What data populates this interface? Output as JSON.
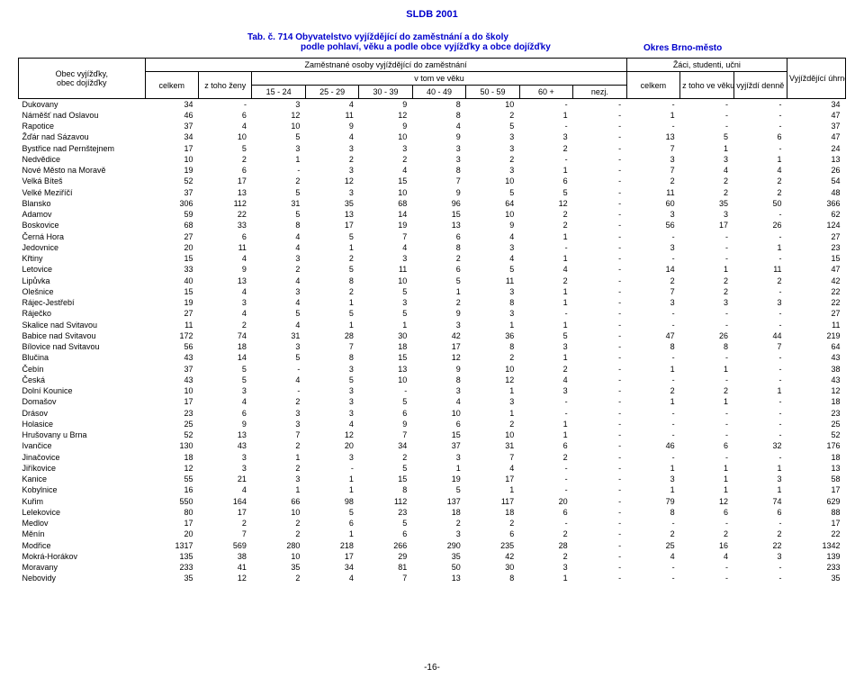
{
  "doc_header": "SLDB 2001",
  "title_prefix": "Tab. č. 714",
  "title_line1": "Obyvatelstvo vyjíždějící do zaměstnání a  do školy",
  "title_line2": "podle pohlaví, věku a podle obce vyjížďky a obce dojížďky",
  "district": "Okres Brno-město",
  "headers": {
    "col_obec_l1": "Obec vyjížďky,",
    "col_obec_l2": "obec dojížďky",
    "col_zamest": "Zaměstnané osoby vyjíždějící do zaměstnání",
    "col_celkem": "celkem",
    "col_ztoho_zeny": "z toho ženy",
    "col_vek": "v tom ve věku",
    "col_15_24": "15 - 24",
    "col_25_29": "25 - 29",
    "col_30_39": "30 - 39",
    "col_40_49": "40 - 49",
    "col_50_59": "50 - 59",
    "col_60p": "60 +",
    "col_nezj": "nezj.",
    "col_zaci": "Žáci, studenti, učni",
    "col_ztoho_vek": "z toho ve věku 6 - 14 let",
    "col_vyjizdi": "vyjíždí denně",
    "col_uhrnem": "Vyjíždějící úhrnem"
  },
  "rows": [
    {
      "n": "Dukovany",
      "v": [
        "34",
        "-",
        "3",
        "4",
        "9",
        "8",
        "10",
        "-",
        "-",
        "-",
        "-",
        "-",
        "34"
      ]
    },
    {
      "n": "Náměšť nad Oslavou",
      "v": [
        "46",
        "6",
        "12",
        "11",
        "12",
        "8",
        "2",
        "1",
        "-",
        "1",
        "-",
        "-",
        "47"
      ]
    },
    {
      "n": "Rapotice",
      "v": [
        "37",
        "4",
        "10",
        "9",
        "9",
        "4",
        "5",
        "-",
        "-",
        "-",
        "-",
        "-",
        "37"
      ]
    },
    {
      "n": "Žďár nad Sázavou",
      "v": [
        "34",
        "10",
        "5",
        "4",
        "10",
        "9",
        "3",
        "3",
        "-",
        "13",
        "5",
        "6",
        "47"
      ]
    },
    {
      "n": "Bystřice nad Pernštejnem",
      "v": [
        "17",
        "5",
        "3",
        "3",
        "3",
        "3",
        "3",
        "2",
        "-",
        "7",
        "1",
        "-",
        "24"
      ]
    },
    {
      "n": "Nedvědice",
      "v": [
        "10",
        "2",
        "1",
        "2",
        "2",
        "3",
        "2",
        "-",
        "-",
        "3",
        "3",
        "1",
        "13"
      ]
    },
    {
      "n": "Nové Město na Moravě",
      "v": [
        "19",
        "6",
        "-",
        "3",
        "4",
        "8",
        "3",
        "1",
        "-",
        "7",
        "4",
        "4",
        "26"
      ]
    },
    {
      "n": "Velká Bíteš",
      "v": [
        "52",
        "17",
        "2",
        "12",
        "15",
        "7",
        "10",
        "6",
        "-",
        "2",
        "2",
        "2",
        "54"
      ]
    },
    {
      "n": "Velké Meziříčí",
      "v": [
        "37",
        "13",
        "5",
        "3",
        "10",
        "9",
        "5",
        "5",
        "-",
        "11",
        "2",
        "2",
        "48"
      ]
    },
    {
      "n": "Blansko",
      "v": [
        "306",
        "112",
        "31",
        "35",
        "68",
        "96",
        "64",
        "12",
        "-",
        "60",
        "35",
        "50",
        "366"
      ]
    },
    {
      "n": "Adamov",
      "v": [
        "59",
        "22",
        "5",
        "13",
        "14",
        "15",
        "10",
        "2",
        "-",
        "3",
        "3",
        "-",
        "62"
      ]
    },
    {
      "n": "Boskovice",
      "v": [
        "68",
        "33",
        "8",
        "17",
        "19",
        "13",
        "9",
        "2",
        "-",
        "56",
        "17",
        "26",
        "124"
      ]
    },
    {
      "n": "Černá Hora",
      "v": [
        "27",
        "6",
        "4",
        "5",
        "7",
        "6",
        "4",
        "1",
        "-",
        "-",
        "-",
        "-",
        "27"
      ]
    },
    {
      "n": "Jedovnice",
      "v": [
        "20",
        "11",
        "4",
        "1",
        "4",
        "8",
        "3",
        "-",
        "-",
        "3",
        "-",
        "1",
        "23"
      ]
    },
    {
      "n": "Křtiny",
      "v": [
        "15",
        "4",
        "3",
        "2",
        "3",
        "2",
        "4",
        "1",
        "-",
        "-",
        "-",
        "-",
        "15"
      ]
    },
    {
      "n": "Letovice",
      "v": [
        "33",
        "9",
        "2",
        "5",
        "11",
        "6",
        "5",
        "4",
        "-",
        "14",
        "1",
        "11",
        "47"
      ]
    },
    {
      "n": "Lipůvka",
      "v": [
        "40",
        "13",
        "4",
        "8",
        "10",
        "5",
        "11",
        "2",
        "-",
        "2",
        "2",
        "2",
        "42"
      ]
    },
    {
      "n": "Olešnice",
      "v": [
        "15",
        "4",
        "3",
        "2",
        "5",
        "1",
        "3",
        "1",
        "-",
        "7",
        "2",
        "-",
        "22"
      ]
    },
    {
      "n": "Rájec-Jestřebí",
      "v": [
        "19",
        "3",
        "4",
        "1",
        "3",
        "2",
        "8",
        "1",
        "-",
        "3",
        "3",
        "3",
        "22"
      ]
    },
    {
      "n": "Ráječko",
      "v": [
        "27",
        "4",
        "5",
        "5",
        "5",
        "9",
        "3",
        "-",
        "-",
        "-",
        "-",
        "-",
        "27"
      ]
    },
    {
      "n": "Skalice nad Svitavou",
      "v": [
        "11",
        "2",
        "4",
        "1",
        "1",
        "3",
        "1",
        "1",
        "-",
        "-",
        "-",
        "-",
        "11"
      ]
    },
    {
      "n": "Babice nad Svitavou",
      "v": [
        "172",
        "74",
        "31",
        "28",
        "30",
        "42",
        "36",
        "5",
        "-",
        "47",
        "26",
        "44",
        "219"
      ]
    },
    {
      "n": "Bílovice nad Svitavou",
      "v": [
        "56",
        "18",
        "3",
        "7",
        "18",
        "17",
        "8",
        "3",
        "-",
        "8",
        "8",
        "7",
        "64"
      ]
    },
    {
      "n": "Blučina",
      "v": [
        "43",
        "14",
        "5",
        "8",
        "15",
        "12",
        "2",
        "1",
        "-",
        "-",
        "-",
        "-",
        "43"
      ]
    },
    {
      "n": "Čebín",
      "v": [
        "37",
        "5",
        "-",
        "3",
        "13",
        "9",
        "10",
        "2",
        "-",
        "1",
        "1",
        "-",
        "38"
      ]
    },
    {
      "n": "Česká",
      "v": [
        "43",
        "5",
        "4",
        "5",
        "10",
        "8",
        "12",
        "4",
        "-",
        "-",
        "-",
        "-",
        "43"
      ]
    },
    {
      "n": "Dolní Kounice",
      "v": [
        "10",
        "3",
        "-",
        "3",
        "-",
        "3",
        "1",
        "3",
        "-",
        "2",
        "2",
        "1",
        "12"
      ]
    },
    {
      "n": "Domašov",
      "v": [
        "17",
        "4",
        "2",
        "3",
        "5",
        "4",
        "3",
        "-",
        "-",
        "1",
        "1",
        "-",
        "18"
      ]
    },
    {
      "n": "Drásov",
      "v": [
        "23",
        "6",
        "3",
        "3",
        "6",
        "10",
        "1",
        "-",
        "-",
        "-",
        "-",
        "-",
        "23"
      ]
    },
    {
      "n": "Holasice",
      "v": [
        "25",
        "9",
        "3",
        "4",
        "9",
        "6",
        "2",
        "1",
        "-",
        "-",
        "-",
        "-",
        "25"
      ]
    },
    {
      "n": "Hrušovany u Brna",
      "v": [
        "52",
        "13",
        "7",
        "12",
        "7",
        "15",
        "10",
        "1",
        "-",
        "-",
        "-",
        "-",
        "52"
      ]
    },
    {
      "n": "Ivančice",
      "v": [
        "130",
        "43",
        "2",
        "20",
        "34",
        "37",
        "31",
        "6",
        "-",
        "46",
        "6",
        "32",
        "176"
      ]
    },
    {
      "n": "Jinačovice",
      "v": [
        "18",
        "3",
        "1",
        "3",
        "2",
        "3",
        "7",
        "2",
        "-",
        "-",
        "-",
        "-",
        "18"
      ]
    },
    {
      "n": "Jiříkovice",
      "v": [
        "12",
        "3",
        "2",
        "-",
        "5",
        "1",
        "4",
        "-",
        "-",
        "1",
        "1",
        "1",
        "13"
      ]
    },
    {
      "n": "Kanice",
      "v": [
        "55",
        "21",
        "3",
        "1",
        "15",
        "19",
        "17",
        "-",
        "-",
        "3",
        "1",
        "3",
        "58"
      ]
    },
    {
      "n": "Kobylnice",
      "v": [
        "16",
        "4",
        "1",
        "1",
        "8",
        "5",
        "1",
        "-",
        "-",
        "1",
        "1",
        "1",
        "17"
      ]
    },
    {
      "n": "Kuřim",
      "v": [
        "550",
        "164",
        "66",
        "98",
        "112",
        "137",
        "117",
        "20",
        "-",
        "79",
        "12",
        "74",
        "629"
      ]
    },
    {
      "n": "Lelekovice",
      "v": [
        "80",
        "17",
        "10",
        "5",
        "23",
        "18",
        "18",
        "6",
        "-",
        "8",
        "6",
        "6",
        "88"
      ]
    },
    {
      "n": "Medlov",
      "v": [
        "17",
        "2",
        "2",
        "6",
        "5",
        "2",
        "2",
        "-",
        "-",
        "-",
        "-",
        "-",
        "17"
      ]
    },
    {
      "n": "Měnín",
      "v": [
        "20",
        "7",
        "2",
        "1",
        "6",
        "3",
        "6",
        "2",
        "-",
        "2",
        "2",
        "2",
        "22"
      ]
    },
    {
      "n": "Modřice",
      "v": [
        "1317",
        "569",
        "280",
        "218",
        "266",
        "290",
        "235",
        "28",
        "-",
        "25",
        "16",
        "22",
        "1342"
      ]
    },
    {
      "n": "Mokrá-Horákov",
      "v": [
        "135",
        "38",
        "10",
        "17",
        "29",
        "35",
        "42",
        "2",
        "-",
        "4",
        "4",
        "3",
        "139"
      ]
    },
    {
      "n": "Moravany",
      "v": [
        "233",
        "41",
        "35",
        "34",
        "81",
        "50",
        "30",
        "3",
        "-",
        "-",
        "-",
        "-",
        "233"
      ]
    },
    {
      "n": "Nebovidy",
      "v": [
        "35",
        "12",
        "2",
        "4",
        "7",
        "13",
        "8",
        "1",
        "-",
        "-",
        "-",
        "-",
        "35"
      ]
    }
  ],
  "page_num": "-16-",
  "colors": {
    "header_blue": "#0000cc",
    "text": "#000000",
    "bg": "#ffffff",
    "border": "#000000"
  }
}
